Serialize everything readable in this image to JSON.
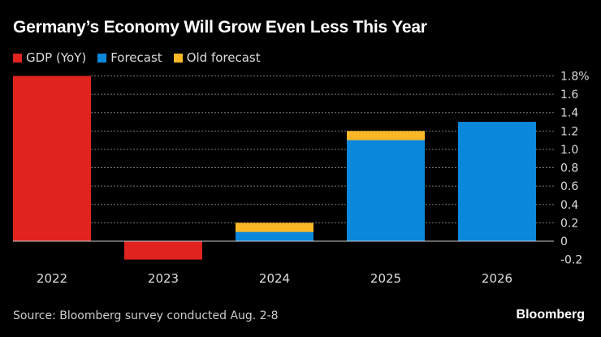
{
  "chart_data": {
    "type": "bar",
    "title": "Germany’s Economy Will Grow Even Less This Year",
    "categories": [
      "2022",
      "2023",
      "2024",
      "2025",
      "2026"
    ],
    "series": [
      {
        "name": "GDP (YoY)",
        "color": "#e0231f",
        "values": [
          1.8,
          -0.2,
          null,
          null,
          null
        ]
      },
      {
        "name": "Forecast",
        "color": "#0b87dc",
        "values": [
          null,
          null,
          0.1,
          1.1,
          1.3
        ]
      },
      {
        "name": "Old forecast",
        "color": "#fbb726",
        "values": [
          null,
          null,
          0.2,
          1.2,
          null
        ]
      }
    ],
    "ylim": [
      -0.2,
      1.8
    ],
    "yticks": [
      "1.8%",
      "1.6",
      "1.4",
      "1.2",
      "1.0",
      "0.8",
      "0.6",
      "0.4",
      "0.2",
      "0",
      "-0.2"
    ],
    "ytick_values": [
      1.8,
      1.6,
      1.4,
      1.2,
      1.0,
      0.8,
      0.6,
      0.4,
      0.2,
      0,
      -0.2
    ],
    "grid": true,
    "legend": "top-left",
    "source": "Source: Bloomberg survey conducted Aug. 2-8"
  },
  "brand": "Bloomberg"
}
